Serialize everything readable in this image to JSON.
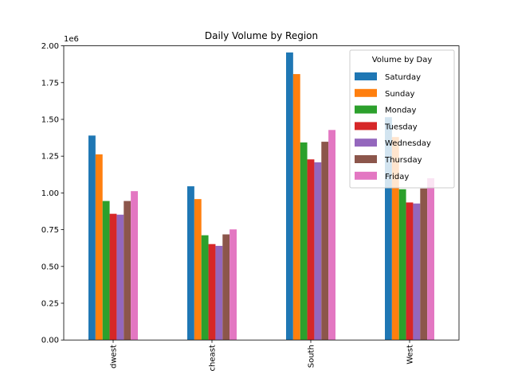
{
  "chart_data": {
    "type": "bar",
    "title": "Daily Volume by Region",
    "xlabel": "",
    "ylabel": "",
    "y_scale_label": "1e6",
    "ylim": [
      0,
      2000000
    ],
    "yticks": [
      0,
      250000,
      500000,
      750000,
      1000000,
      1250000,
      1500000,
      1750000,
      2000000
    ],
    "ytick_labels": [
      "0.00",
      "0.25",
      "0.50",
      "0.75",
      "1.00",
      "1.25",
      "1.50",
      "1.75",
      "2.00"
    ],
    "categories": [
      "dwest",
      "cheast",
      "South",
      "West"
    ],
    "grid": false,
    "legend": {
      "title": "Volume by Day",
      "placement": "top-right"
    },
    "series": [
      {
        "name": "Saturday",
        "color": "#1f77b4",
        "values": [
          1390000,
          1045000,
          1955000,
          1515000
        ]
      },
      {
        "name": "Sunday",
        "color": "#ff7f0e",
        "values": [
          1262000,
          958000,
          1808000,
          1380000
        ]
      },
      {
        "name": "Monday",
        "color": "#2ca02c",
        "values": [
          945000,
          712000,
          1343000,
          1025000
        ]
      },
      {
        "name": "Tuesday",
        "color": "#d62728",
        "values": [
          858000,
          652000,
          1228000,
          935000
        ]
      },
      {
        "name": "Wednesday",
        "color": "#9467bd",
        "values": [
          852000,
          640000,
          1208000,
          928000
        ]
      },
      {
        "name": "Thursday",
        "color": "#8c564b",
        "values": [
          945000,
          718000,
          1348000,
          1030000
        ]
      },
      {
        "name": "Friday",
        "color": "#e377c2",
        "values": [
          1012000,
          752000,
          1428000,
          1100000
        ]
      }
    ]
  }
}
